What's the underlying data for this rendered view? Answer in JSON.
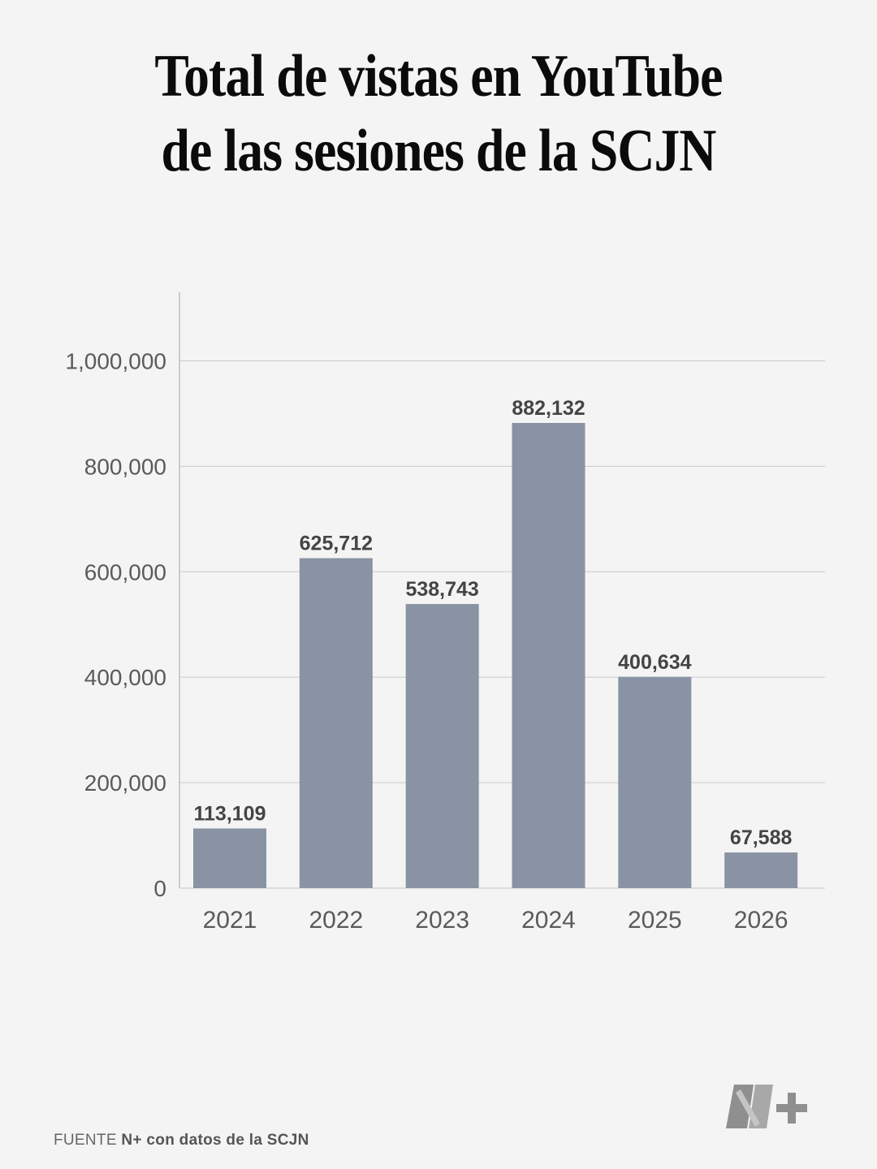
{
  "title_line1": "Total de vistas en YouTube",
  "title_line2": "de las sesiones de la SCJN",
  "source": {
    "prefix": "FUENTE",
    "org": "N+",
    "text": "con datos de la SCJN"
  },
  "logo_icon": "nplus-logo-icon",
  "colors": {
    "bar": "#8a93a3",
    "grid": "#c9c9c9",
    "axis_text": "#5a5a5a",
    "label_text": "#444444"
  },
  "chart_data": {
    "type": "bar",
    "categories": [
      "2021",
      "2022",
      "2023",
      "2024",
      "2025",
      "2026"
    ],
    "values": [
      113109,
      625712,
      538743,
      882132,
      400634,
      67588
    ],
    "value_labels": [
      "113,109",
      "625,712",
      "538,743",
      "882,132",
      "400,634",
      "67,588"
    ],
    "ylim": [
      0,
      1130000
    ],
    "yticks": [
      0,
      200000,
      400000,
      600000,
      800000,
      1000000
    ],
    "ytick_labels": [
      "0",
      "200,000",
      "400,000",
      "600,000",
      "800,000",
      "1,000,000"
    ],
    "grid": true,
    "legend": "none"
  }
}
